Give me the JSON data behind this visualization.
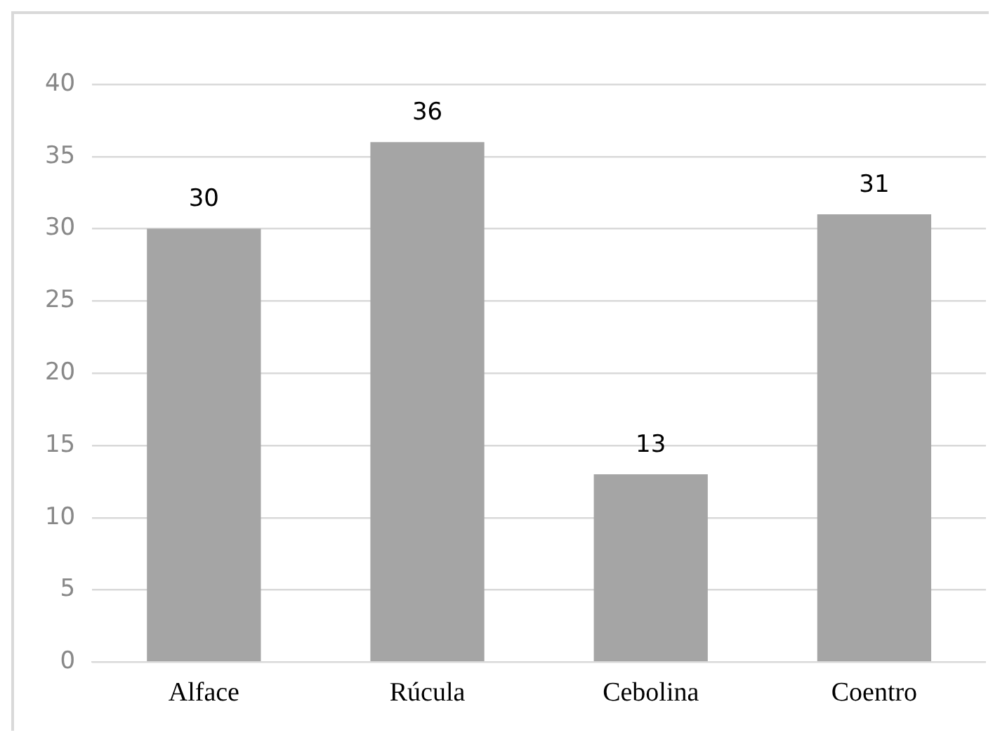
{
  "chart_data": {
    "type": "bar",
    "categories": [
      "Alface",
      "Rúcula",
      "Cebolina",
      "Coentro"
    ],
    "values": [
      30,
      36,
      13,
      31
    ],
    "color": "#a5a5a5",
    "ylim": [
      0,
      40
    ],
    "yticks": [
      0,
      5,
      10,
      15,
      20,
      25,
      30,
      35,
      40
    ],
    "grid": "y",
    "legend": false,
    "data_labels": true
  }
}
